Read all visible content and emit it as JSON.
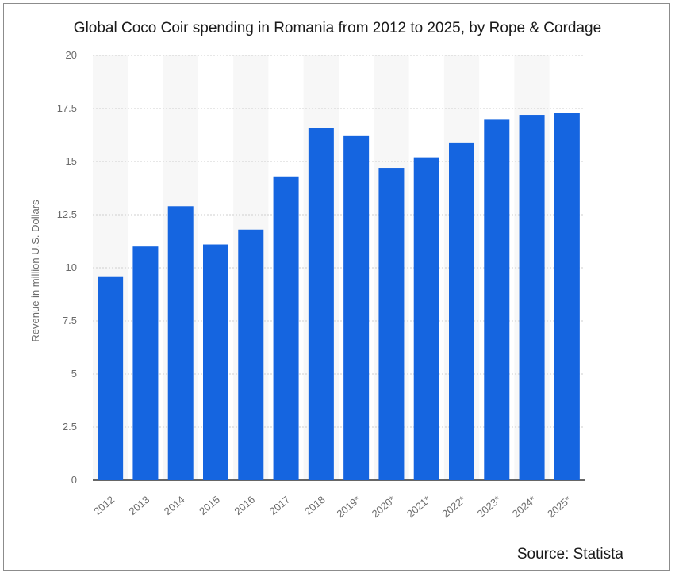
{
  "chart_data": {
    "type": "bar",
    "title": "Global Coco Coir spending in Romania from 2012 to 2025, by Rope & Cordage",
    "xlabel": "",
    "ylabel": "Revenue in million U.S. Dollars",
    "categories": [
      "2012",
      "2013",
      "2014",
      "2015",
      "2016",
      "2017",
      "2018",
      "2019*",
      "2020*",
      "2021*",
      "2022*",
      "2023*",
      "2024*",
      "2025*"
    ],
    "values": [
      9.6,
      11.0,
      12.9,
      11.1,
      11.8,
      14.3,
      16.6,
      16.2,
      14.7,
      15.2,
      15.9,
      17.0,
      17.2,
      17.3
    ],
    "ylim": [
      0,
      20
    ],
    "yticks": [
      "0",
      "2.5",
      "5",
      "7.5",
      "10",
      "12.5",
      "15",
      "17.5",
      "20"
    ],
    "grid": true,
    "bar_color": "#1565e0"
  },
  "source": "Source: Statista"
}
